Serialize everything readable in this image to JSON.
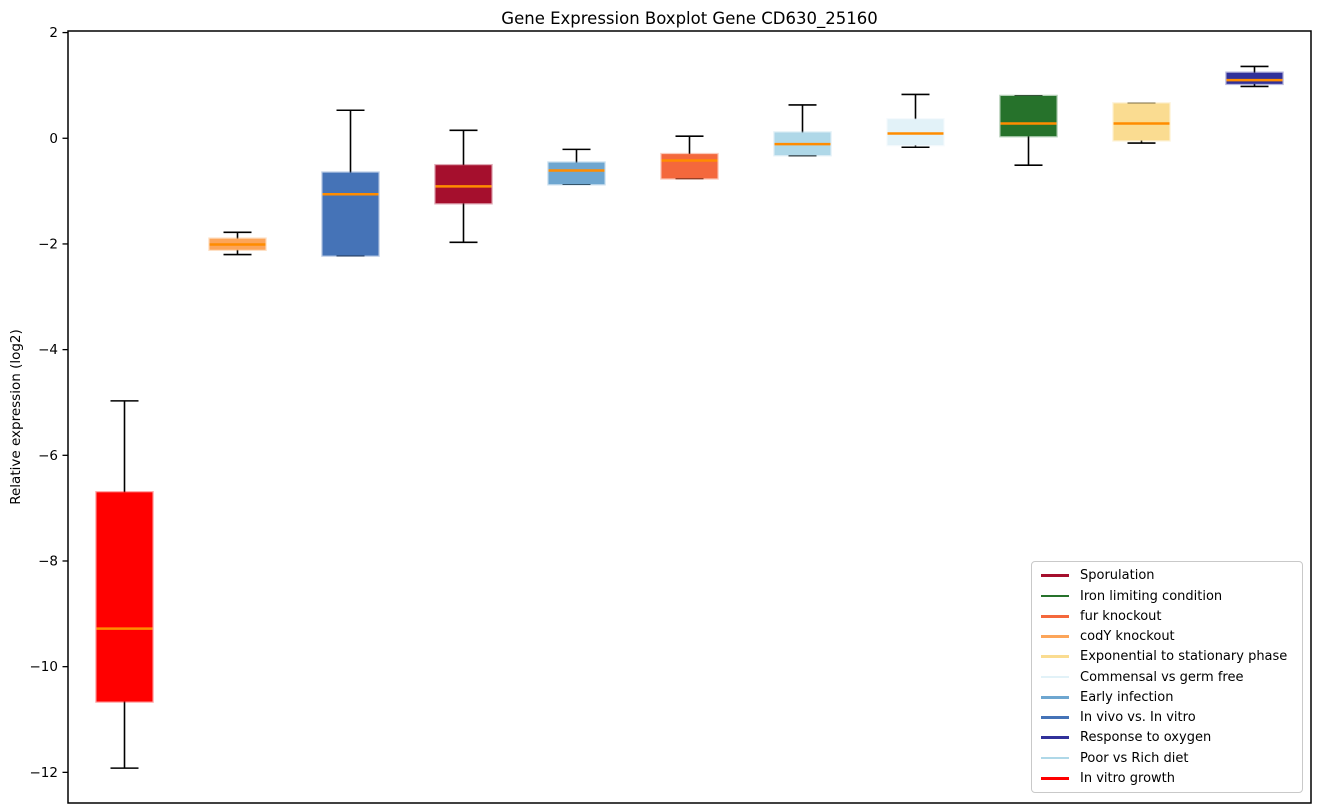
{
  "window": {
    "background": "#ffffff"
  },
  "chart_data": {
    "type": "boxplot",
    "title": "Gene Expression Boxplot Gene CD630_25160",
    "xlabel": "",
    "ylabel": "Relative expression (log2)",
    "ylim": [
      -12.58,
      2.03
    ],
    "yticks": [
      2,
      0,
      -2,
      -4,
      -6,
      -8,
      -10,
      -12
    ],
    "xticklabels": [],
    "grid": false,
    "median_color": "#FF8C00",
    "whisker_color": "#000000",
    "axis_color": "#000000",
    "legend_position": "lower right",
    "boxes": [
      {
        "label": "In vitro growth",
        "color": "#FF0000",
        "whislo": -11.92,
        "q1": -10.66,
        "med": -9.28,
        "q3": -6.7,
        "whishi": -4.97
      },
      {
        "label": "codY knockout",
        "color": "#FCA55A",
        "whislo": -2.2,
        "q1": -2.11,
        "med": -2.01,
        "q3": -1.9,
        "whishi": -1.78
      },
      {
        "label": "In vivo vs. In vitro",
        "color": "#4573B7",
        "whislo": -2.22,
        "q1": -2.22,
        "med": -1.06,
        "q3": -0.65,
        "whishi": 0.53
      },
      {
        "label": "Sporulation",
        "color": "#A50F2D",
        "whislo": -1.97,
        "q1": -1.23,
        "med": -0.91,
        "q3": -0.51,
        "whishi": 0.15
      },
      {
        "label": "Early infection",
        "color": "#6EA6D0",
        "whislo": -0.87,
        "q1": -0.87,
        "med": -0.61,
        "q3": -0.46,
        "whishi": -0.21
      },
      {
        "label": "fur knockout",
        "color": "#F4683C",
        "whislo": -0.76,
        "q1": -0.76,
        "med": -0.42,
        "q3": -0.3,
        "whishi": 0.04
      },
      {
        "label": "Poor vs Rich diet",
        "color": "#AFD8E8",
        "whislo": -0.33,
        "q1": -0.32,
        "med": -0.11,
        "q3": 0.11,
        "whishi": 0.63
      },
      {
        "label": "Commensal vs germ free",
        "color": "#E2F2F8",
        "whislo": -0.17,
        "q1": -0.13,
        "med": 0.09,
        "q3": 0.36,
        "whishi": 0.83
      },
      {
        "label": "Iron limiting condition",
        "color": "#26722B",
        "whislo": -0.51,
        "q1": 0.04,
        "med": 0.28,
        "q3": 0.8,
        "whishi": 0.8
      },
      {
        "label": "Exponential to stationary phase",
        "color": "#FADC91",
        "whislo": -0.09,
        "q1": -0.04,
        "med": 0.28,
        "q3": 0.66,
        "whishi": 0.66
      },
      {
        "label": "Response to oxygen",
        "color": "#31319A",
        "whislo": 0.98,
        "q1": 1.03,
        "med": 1.1,
        "q3": 1.24,
        "whishi": 1.36
      }
    ],
    "legend": [
      {
        "label": "Sporulation",
        "color": "#A50F2D"
      },
      {
        "label": "Iron limiting condition",
        "color": "#26722B"
      },
      {
        "label": "fur knockout",
        "color": "#F4683C"
      },
      {
        "label": "codY knockout",
        "color": "#FCA55A"
      },
      {
        "label": "Exponential to stationary phase",
        "color": "#FADC91"
      },
      {
        "label": "Commensal vs germ free",
        "color": "#E2F2F8"
      },
      {
        "label": "Early infection",
        "color": "#6EA6D0"
      },
      {
        "label": "In vivo vs. In vitro",
        "color": "#4573B7"
      },
      {
        "label": "Response to oxygen",
        "color": "#31319A"
      },
      {
        "label": "Poor vs Rich diet",
        "color": "#AFD8E8"
      },
      {
        "label": "In vitro growth",
        "color": "#FF0000"
      }
    ]
  }
}
